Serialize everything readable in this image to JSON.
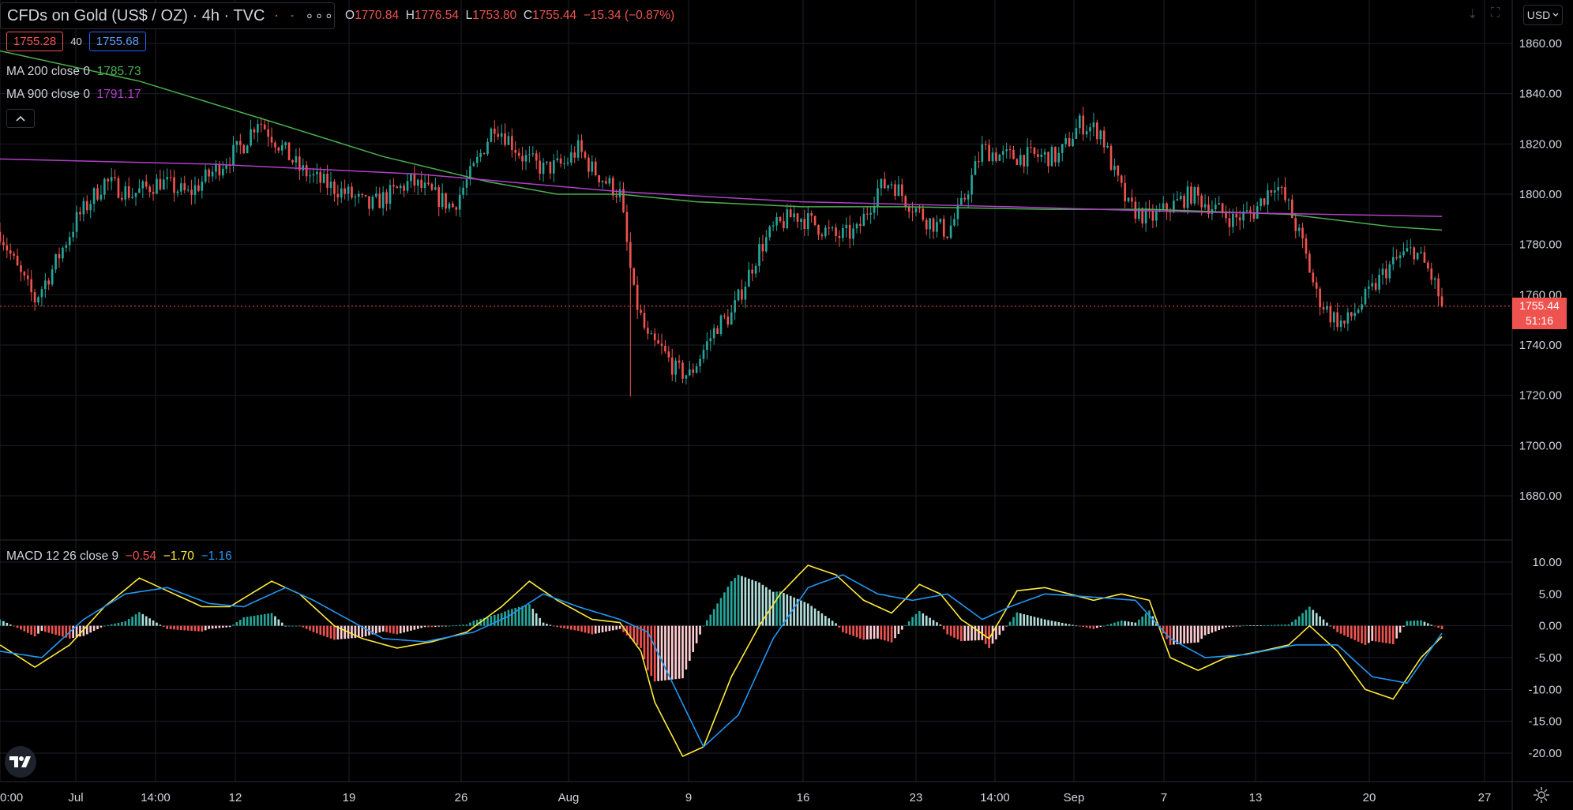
{
  "header": {
    "symbol": "CFDs on Gold (US$ / OZ)",
    "interval": "4h",
    "exchange": "TVC",
    "flag_color": "#ef5350"
  },
  "ohlc": {
    "o_label": "O",
    "o": "1770.84",
    "h_label": "H",
    "h": "1776.54",
    "l_label": "L",
    "l": "1753.80",
    "c_label": "C",
    "c": "1755.44",
    "change": "−15.34 (−0.87%)"
  },
  "quote": {
    "bid": "1755.28",
    "spread": "40",
    "ask": "1755.68"
  },
  "indicators": {
    "ma200": {
      "label": "MA 200 close 0",
      "value": "1785.73",
      "color": "#4caf50"
    },
    "ma900": {
      "label": "MA 900 close 0",
      "value": "1791.17",
      "color": "#b13fc9"
    },
    "macd": {
      "label": "MACD 12 26 close 9",
      "hist": "−0.54",
      "hist_color": "#ef5350",
      "macd": "−1.70",
      "macd_color": "#ffeb3b",
      "signal": "−1.16",
      "signal_color": "#2196f3"
    }
  },
  "price_axis": {
    "currency": "USD",
    "last_price": "1755.44",
    "countdown": "51:16",
    "last_color": "#ef5350"
  },
  "chart_data": [
    {
      "type": "candlestick",
      "title": "",
      "y_ticks": [
        "1860.00",
        "1840.00",
        "1820.00",
        "1800.00",
        "1780.00",
        "1760.00",
        "1740.00",
        "1720.00",
        "1700.00",
        "1680.00"
      ],
      "ylim": [
        1670,
        1865
      ],
      "x_ticks": [
        "0:00",
        "Jul",
        "14:00",
        "12",
        "19",
        "26",
        "Aug",
        "9",
        "16",
        "23",
        "14:00",
        "Sep",
        "7",
        "13",
        "20",
        "27"
      ],
      "grid": true,
      "candles_close_anchors": [
        [
          0,
          1785
        ],
        [
          5,
          1770
        ],
        [
          10,
          1758
        ],
        [
          15,
          1770
        ],
        [
          22,
          1790
        ],
        [
          30,
          1805
        ],
        [
          38,
          1800
        ],
        [
          46,
          1805
        ],
        [
          54,
          1800
        ],
        [
          62,
          1810
        ],
        [
          70,
          1820
        ],
        [
          74,
          1830
        ],
        [
          80,
          1820
        ],
        [
          86,
          1810
        ],
        [
          92,
          1805
        ],
        [
          100,
          1800
        ],
        [
          106,
          1795
        ],
        [
          112,
          1800
        ],
        [
          118,
          1805
        ],
        [
          124,
          1800
        ],
        [
          130,
          1795
        ],
        [
          136,
          1810
        ],
        [
          142,
          1828
        ],
        [
          146,
          1822
        ],
        [
          150,
          1815
        ],
        [
          156,
          1810
        ],
        [
          162,
          1812
        ],
        [
          166,
          1818
        ],
        [
          170,
          1810
        ],
        [
          174,
          1805
        ],
        [
          178,
          1800
        ],
        [
          182,
          1760
        ],
        [
          186,
          1742
        ],
        [
          190,
          1738
        ],
        [
          194,
          1730
        ],
        [
          198,
          1728
        ],
        [
          202,
          1738
        ],
        [
          206,
          1748
        ],
        [
          210,
          1752
        ],
        [
          214,
          1765
        ],
        [
          218,
          1778
        ],
        [
          222,
          1786
        ],
        [
          228,
          1792
        ],
        [
          234,
          1788
        ],
        [
          240,
          1783
        ],
        [
          246,
          1785
        ],
        [
          252,
          1802
        ],
        [
          256,
          1805
        ],
        [
          260,
          1798
        ],
        [
          266,
          1790
        ],
        [
          272,
          1785
        ],
        [
          276,
          1795
        ],
        [
          282,
          1818
        ],
        [
          288,
          1815
        ],
        [
          296,
          1815
        ],
        [
          304,
          1815
        ],
        [
          310,
          1828
        ],
        [
          316,
          1825
        ],
        [
          320,
          1808
        ],
        [
          324,
          1795
        ],
        [
          330,
          1790
        ],
        [
          336,
          1795
        ],
        [
          342,
          1800
        ],
        [
          348,
          1795
        ],
        [
          354,
          1790
        ],
        [
          360,
          1793
        ],
        [
          366,
          1805
        ],
        [
          370,
          1795
        ],
        [
          374,
          1780
        ],
        [
          378,
          1760
        ],
        [
          382,
          1752
        ],
        [
          386,
          1748
        ],
        [
          390,
          1755
        ],
        [
          394,
          1762
        ],
        [
          398,
          1770
        ],
        [
          402,
          1775
        ],
        [
          406,
          1778
        ],
        [
          410,
          1770
        ],
        [
          412,
          1764
        ],
        [
          414,
          1755.44
        ]
      ],
      "candle_count": 415,
      "last_close": 1755.44
    },
    {
      "type": "line",
      "title": "",
      "series": [
        {
          "name": "MA 200 close 0",
          "points": [
            [
              0,
              1857
            ],
            [
              40,
              1845
            ],
            [
              80,
              1828
            ],
            [
              110,
              1815
            ],
            [
              140,
              1805
            ],
            [
              160,
              1800
            ],
            [
              178,
              1800
            ],
            [
              200,
              1797
            ],
            [
              230,
              1795
            ],
            [
              260,
              1795
            ],
            [
              300,
              1794
            ],
            [
              330,
              1794
            ],
            [
              370,
              1792
            ],
            [
              400,
              1787
            ],
            [
              414,
              1785.73
            ]
          ]
        },
        {
          "name": "MA 900 close 0",
          "points": [
            [
              0,
              1814
            ],
            [
              60,
              1812
            ],
            [
              120,
              1808
            ],
            [
              178,
              1801
            ],
            [
              230,
              1797
            ],
            [
              290,
              1795
            ],
            [
              340,
              1793
            ],
            [
              414,
              1791.17
            ]
          ]
        }
      ]
    },
    {
      "type": "bar",
      "title": "",
      "y_ticks": [
        "10.00",
        "5.00",
        "0.00",
        "-5.00",
        "-10.00",
        "-15.00",
        "-20.00"
      ],
      "ylim": [
        -24,
        12
      ],
      "macd_line_anchors": [
        [
          0,
          -3
        ],
        [
          10,
          -6.5
        ],
        [
          20,
          -3
        ],
        [
          30,
          3
        ],
        [
          40,
          7.5
        ],
        [
          48,
          5.5
        ],
        [
          58,
          3
        ],
        [
          66,
          3
        ],
        [
          78,
          7
        ],
        [
          86,
          5
        ],
        [
          96,
          0
        ],
        [
          104,
          -2
        ],
        [
          114,
          -3.5
        ],
        [
          124,
          -2.5
        ],
        [
          134,
          -1
        ],
        [
          144,
          3
        ],
        [
          152,
          7
        ],
        [
          160,
          4
        ],
        [
          170,
          1
        ],
        [
          178,
          0.5
        ],
        [
          184,
          -4
        ],
        [
          188,
          -12
        ],
        [
          196,
          -20.5
        ],
        [
          202,
          -19
        ],
        [
          210,
          -8
        ],
        [
          218,
          0
        ],
        [
          224,
          5
        ],
        [
          232,
          9.5
        ],
        [
          240,
          8
        ],
        [
          248,
          4
        ],
        [
          256,
          2
        ],
        [
          264,
          6.5
        ],
        [
          270,
          5
        ],
        [
          276,
          1
        ],
        [
          284,
          -2
        ],
        [
          292,
          5.5
        ],
        [
          300,
          6
        ],
        [
          314,
          4
        ],
        [
          322,
          5
        ],
        [
          330,
          4
        ],
        [
          336,
          -5
        ],
        [
          344,
          -7
        ],
        [
          352,
          -5
        ],
        [
          362,
          -4
        ],
        [
          370,
          -3
        ],
        [
          376,
          0
        ],
        [
          384,
          -4
        ],
        [
          392,
          -10
        ],
        [
          400,
          -11.5
        ],
        [
          408,
          -5
        ],
        [
          414,
          -1.7
        ]
      ],
      "signal_line_anchors": [
        [
          0,
          -4
        ],
        [
          12,
          -5
        ],
        [
          24,
          1
        ],
        [
          36,
          5
        ],
        [
          48,
          6
        ],
        [
          60,
          3.5
        ],
        [
          70,
          3
        ],
        [
          82,
          6
        ],
        [
          90,
          4
        ],
        [
          100,
          1
        ],
        [
          110,
          -2
        ],
        [
          122,
          -2.5
        ],
        [
          136,
          -1
        ],
        [
          146,
          1.5
        ],
        [
          156,
          5
        ],
        [
          166,
          3
        ],
        [
          178,
          1
        ],
        [
          186,
          -1
        ],
        [
          194,
          -10
        ],
        [
          202,
          -19
        ],
        [
          212,
          -14
        ],
        [
          222,
          -2
        ],
        [
          232,
          6
        ],
        [
          242,
          8
        ],
        [
          252,
          5
        ],
        [
          262,
          4
        ],
        [
          272,
          5
        ],
        [
          282,
          1
        ],
        [
          290,
          3
        ],
        [
          300,
          5
        ],
        [
          314,
          4.5
        ],
        [
          326,
          4
        ],
        [
          336,
          -2
        ],
        [
          346,
          -5
        ],
        [
          358,
          -4.5
        ],
        [
          372,
          -3
        ],
        [
          384,
          -3
        ],
        [
          394,
          -8
        ],
        [
          404,
          -9
        ],
        [
          414,
          -1.16
        ]
      ],
      "last_hist": -0.54
    }
  ]
}
